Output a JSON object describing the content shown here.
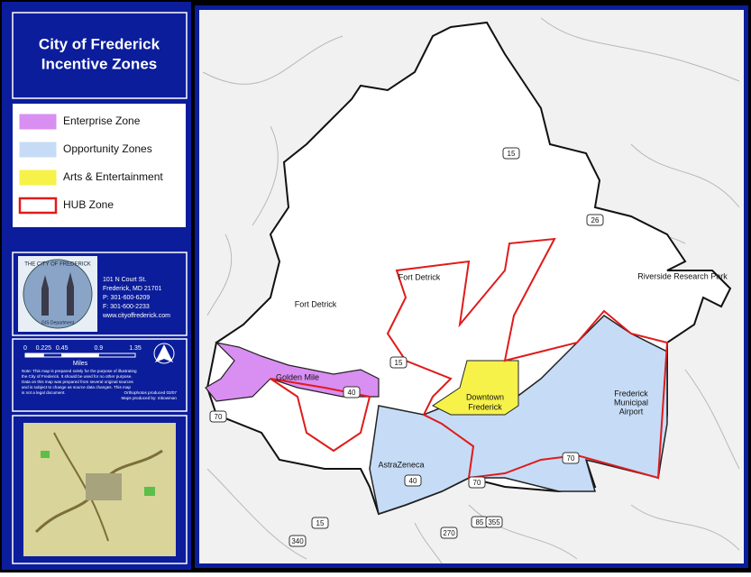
{
  "title": [
    "City of Frederick",
    "Incentive Zones"
  ],
  "legend": [
    {
      "label": "Enterprise Zone",
      "color": "#d98ef2"
    },
    {
      "label": "Opportunity Zones",
      "color": "#c6dcf6"
    },
    {
      "label": "Arts & Entertainment",
      "color": "#f7f24a"
    },
    {
      "label": "HUB Zone",
      "color": "#e01b1b"
    }
  ],
  "logo": {
    "ring": "THE CITY OF FREDERICK",
    "department": "GIS Department"
  },
  "contact": [
    "101 N Court St.",
    "Frederick, MD 21701",
    "P: 301-600-6209",
    "F: 301-600-2233",
    "www.cityoffrederick.com"
  ],
  "scale": {
    "ticks": [
      0,
      0.225,
      0.45,
      0.9,
      1.35
    ],
    "unit": "Miles"
  },
  "note": [
    "Note: This map is prepared solely for the purpose of illustrating",
    "the City of Frederick. It should be used for no other purpose.",
    "Data on this map was prepared from several original sources",
    "and is subject to change as source data changes. This map",
    "is not a legal document."
  ],
  "credits": [
    "Orthophotos produced 03/07",
    "Maps produced by: mbowman"
  ],
  "map_labels": [
    "Fort Detrick",
    "Fort Detrick",
    "Golden Mile",
    "Downtown",
    "Frederick",
    "AstraZeneca",
    "Frederick",
    "Municipal",
    "Airport",
    "Riverside Research Park"
  ],
  "route_shields": [
    "15",
    "26",
    "15",
    "40",
    "70",
    "70",
    "70",
    "40",
    "85",
    "355",
    "15",
    "340",
    "270"
  ]
}
